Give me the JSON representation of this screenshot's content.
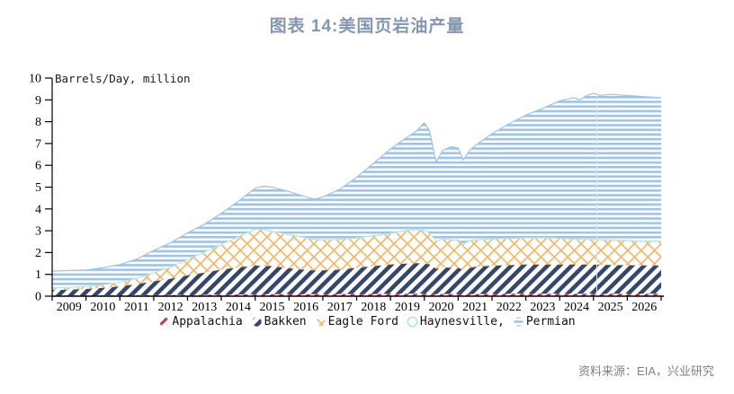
{
  "title": "图表 14:美国页岩油产量",
  "source": "资料来源：EIA，兴业研究",
  "colors": {
    "title": "#8497b0",
    "source": "#7f7f7f",
    "axis": "#000000",
    "divider": "#dde6ef"
  },
  "chart_data": {
    "type": "area",
    "stacked": true,
    "title": "图表 14:美国页岩油产量",
    "ylabel": "Barrels/Day, million",
    "xlabel": "",
    "ylim": [
      0,
      10
    ],
    "y_ticks": [
      0,
      1,
      2,
      3,
      4,
      5,
      6,
      7,
      8,
      9,
      10
    ],
    "x_range": [
      2009,
      2027
    ],
    "x_tick_years": [
      2009,
      2010,
      2011,
      2012,
      2013,
      2014,
      2015,
      2016,
      2017,
      2018,
      2019,
      2020,
      2021,
      2022,
      2023,
      2024,
      2025,
      2026
    ],
    "grid": false,
    "legend_position": "bottom",
    "forecast_divider_x": 2025.1,
    "series_order": [
      "appalachia",
      "bakken",
      "eagle_ford",
      "haynesville",
      "permian"
    ],
    "series_meta": {
      "appalachia": {
        "label": "Appalachia",
        "color": "#c23b4e",
        "pattern": "diagonal-dashes"
      },
      "bakken": {
        "label": "Bakken",
        "color": "#35466b",
        "pattern": "diagonal-stripes"
      },
      "eagle_ford": {
        "label": "Eagle Ford",
        "color": "#f0b869",
        "pattern": "crosshatch"
      },
      "haynesville": {
        "label": "Haynesville,",
        "color": "#aee4e4",
        "pattern": "solid"
      },
      "permian": {
        "label": "Permian",
        "color": "#9dc3e6",
        "pattern": "horizontal-stripes"
      }
    },
    "columns": [
      "year",
      "appalachia",
      "bakken",
      "eagle_ford",
      "haynesville",
      "permian"
    ],
    "rows": [
      [
        2009.0,
        0.03,
        0.25,
        0.08,
        0.04,
        0.75
      ],
      [
        2009.5,
        0.03,
        0.27,
        0.08,
        0.04,
        0.76
      ],
      [
        2010.0,
        0.03,
        0.3,
        0.09,
        0.04,
        0.74
      ],
      [
        2010.5,
        0.04,
        0.34,
        0.12,
        0.04,
        0.76
      ],
      [
        2011.0,
        0.04,
        0.41,
        0.17,
        0.04,
        0.79
      ],
      [
        2011.5,
        0.04,
        0.51,
        0.25,
        0.04,
        0.86
      ],
      [
        2012.0,
        0.05,
        0.63,
        0.37,
        0.04,
        1.01
      ],
      [
        2012.5,
        0.05,
        0.75,
        0.5,
        0.04,
        1.11
      ],
      [
        2013.0,
        0.06,
        0.89,
        0.7,
        0.04,
        1.21
      ],
      [
        2013.5,
        0.06,
        1.02,
        0.92,
        0.04,
        1.26
      ],
      [
        2014.0,
        0.07,
        1.15,
        1.13,
        0.04,
        1.41
      ],
      [
        2014.5,
        0.08,
        1.24,
        1.38,
        0.04,
        1.61
      ],
      [
        2015.0,
        0.09,
        1.31,
        1.65,
        0.05,
        1.85
      ],
      [
        2015.25,
        0.09,
        1.3,
        1.64,
        0.05,
        1.97
      ],
      [
        2015.5,
        0.09,
        1.29,
        1.57,
        0.05,
        2.0
      ],
      [
        2016.0,
        0.09,
        1.19,
        1.52,
        0.05,
        1.95
      ],
      [
        2016.5,
        0.09,
        1.11,
        1.45,
        0.05,
        1.85
      ],
      [
        2016.75,
        0.09,
        1.09,
        1.4,
        0.05,
        1.82
      ],
      [
        2017.0,
        0.09,
        1.09,
        1.37,
        0.05,
        1.95
      ],
      [
        2017.5,
        0.1,
        1.12,
        1.36,
        0.05,
        2.27
      ],
      [
        2018.0,
        0.1,
        1.2,
        1.35,
        0.05,
        2.75
      ],
      [
        2018.5,
        0.1,
        1.28,
        1.37,
        0.05,
        3.3
      ],
      [
        2019.0,
        0.11,
        1.34,
        1.4,
        0.05,
        3.85
      ],
      [
        2019.5,
        0.11,
        1.39,
        1.5,
        0.05,
        4.25
      ],
      [
        2019.75,
        0.11,
        1.4,
        1.51,
        0.05,
        4.48
      ],
      [
        2020.0,
        0.11,
        1.39,
        1.5,
        0.05,
        4.9
      ],
      [
        2020.15,
        0.11,
        1.35,
        1.4,
        0.05,
        4.69
      ],
      [
        2020.35,
        0.1,
        1.15,
        1.25,
        0.05,
        3.6
      ],
      [
        2020.55,
        0.1,
        1.22,
        1.28,
        0.05,
        4.05
      ],
      [
        2020.8,
        0.1,
        1.2,
        1.25,
        0.05,
        4.25
      ],
      [
        2021.0,
        0.1,
        1.2,
        1.25,
        0.05,
        4.2
      ],
      [
        2021.15,
        0.1,
        1.1,
        1.15,
        0.05,
        3.85
      ],
      [
        2021.35,
        0.1,
        1.2,
        1.22,
        0.05,
        4.13
      ],
      [
        2021.5,
        0.1,
        1.25,
        1.2,
        0.05,
        4.3
      ],
      [
        2022.0,
        0.1,
        1.3,
        1.2,
        0.05,
        4.8
      ],
      [
        2022.5,
        0.11,
        1.31,
        1.2,
        0.05,
        5.23
      ],
      [
        2023.0,
        0.11,
        1.34,
        1.2,
        0.05,
        5.6
      ],
      [
        2023.4,
        0.11,
        1.34,
        1.2,
        0.05,
        5.85
      ],
      [
        2023.7,
        0.11,
        1.34,
        1.2,
        0.05,
        6.05
      ],
      [
        2024.0,
        0.11,
        1.34,
        1.17,
        0.05,
        6.28
      ],
      [
        2024.4,
        0.11,
        1.34,
        1.15,
        0.05,
        6.45
      ],
      [
        2024.6,
        0.11,
        1.34,
        1.15,
        0.05,
        6.35
      ],
      [
        2024.8,
        0.11,
        1.34,
        1.13,
        0.05,
        6.57
      ],
      [
        2025.0,
        0.11,
        1.34,
        1.12,
        0.05,
        6.68
      ],
      [
        2025.2,
        0.11,
        1.33,
        1.12,
        0.05,
        6.59
      ],
      [
        2025.5,
        0.11,
        1.32,
        1.12,
        0.05,
        6.65
      ],
      [
        2026.0,
        0.11,
        1.31,
        1.1,
        0.05,
        6.63
      ],
      [
        2026.5,
        0.11,
        1.3,
        1.08,
        0.05,
        6.61
      ],
      [
        2027.0,
        0.11,
        1.29,
        1.08,
        0.05,
        6.57
      ]
    ]
  }
}
